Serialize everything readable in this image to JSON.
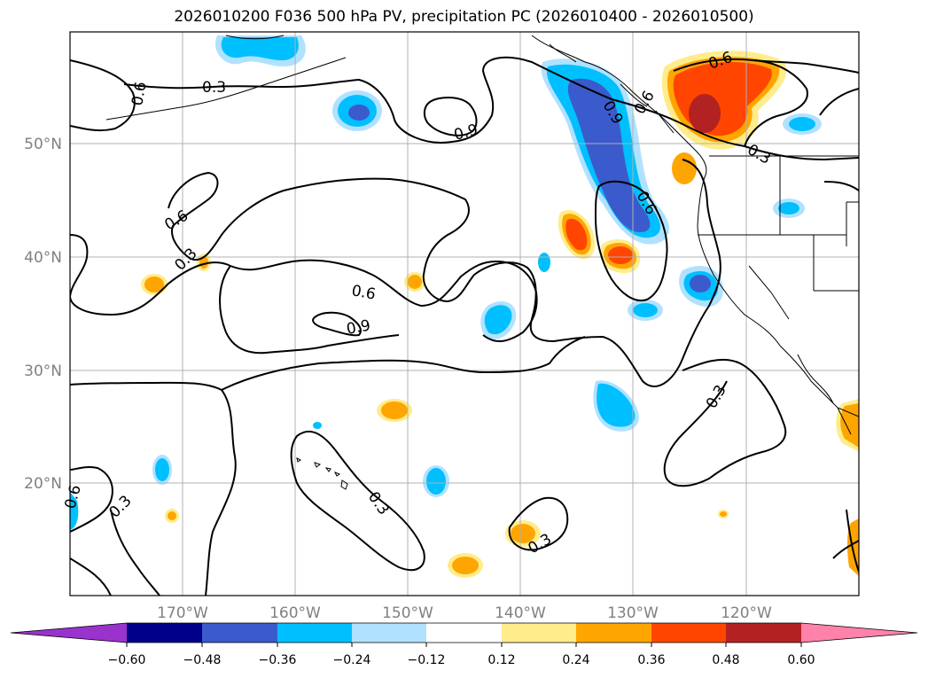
{
  "title": "2026010200 F036 500 hPa PV, precipitation PC (2026010400 - 2026010500)",
  "map": {
    "lon_ticks": [
      "170°W",
      "160°W",
      "150°W",
      "140°W",
      "130°W",
      "120°W"
    ],
    "lat_ticks": [
      "50°N",
      "40°N",
      "30°N",
      "20°N"
    ],
    "gridlines": true,
    "contour_labels": [
      "0.3",
      "0.6",
      "0.9",
      "0.9",
      "0.3",
      "0.6",
      "0.6",
      "0.3",
      "0.6",
      "0.9",
      "0.3",
      "0.6",
      "0.3",
      "0.6",
      "0.3",
      "0.3",
      "0.6"
    ]
  },
  "colorbar": {
    "tick_labels": [
      "−0.60",
      "−0.48",
      "−0.36",
      "−0.24",
      "−0.12",
      "0.12",
      "0.24",
      "0.36",
      "0.48",
      "0.60"
    ],
    "colors": [
      "#9a32cd",
      "#00008b",
      "#3b5bcc",
      "#00bfff",
      "#b0e2ff",
      "#ffffff",
      "#ffec8b",
      "#ffa500",
      "#ff4500",
      "#b22222",
      "#ff82ab"
    ],
    "extend": "both"
  }
}
